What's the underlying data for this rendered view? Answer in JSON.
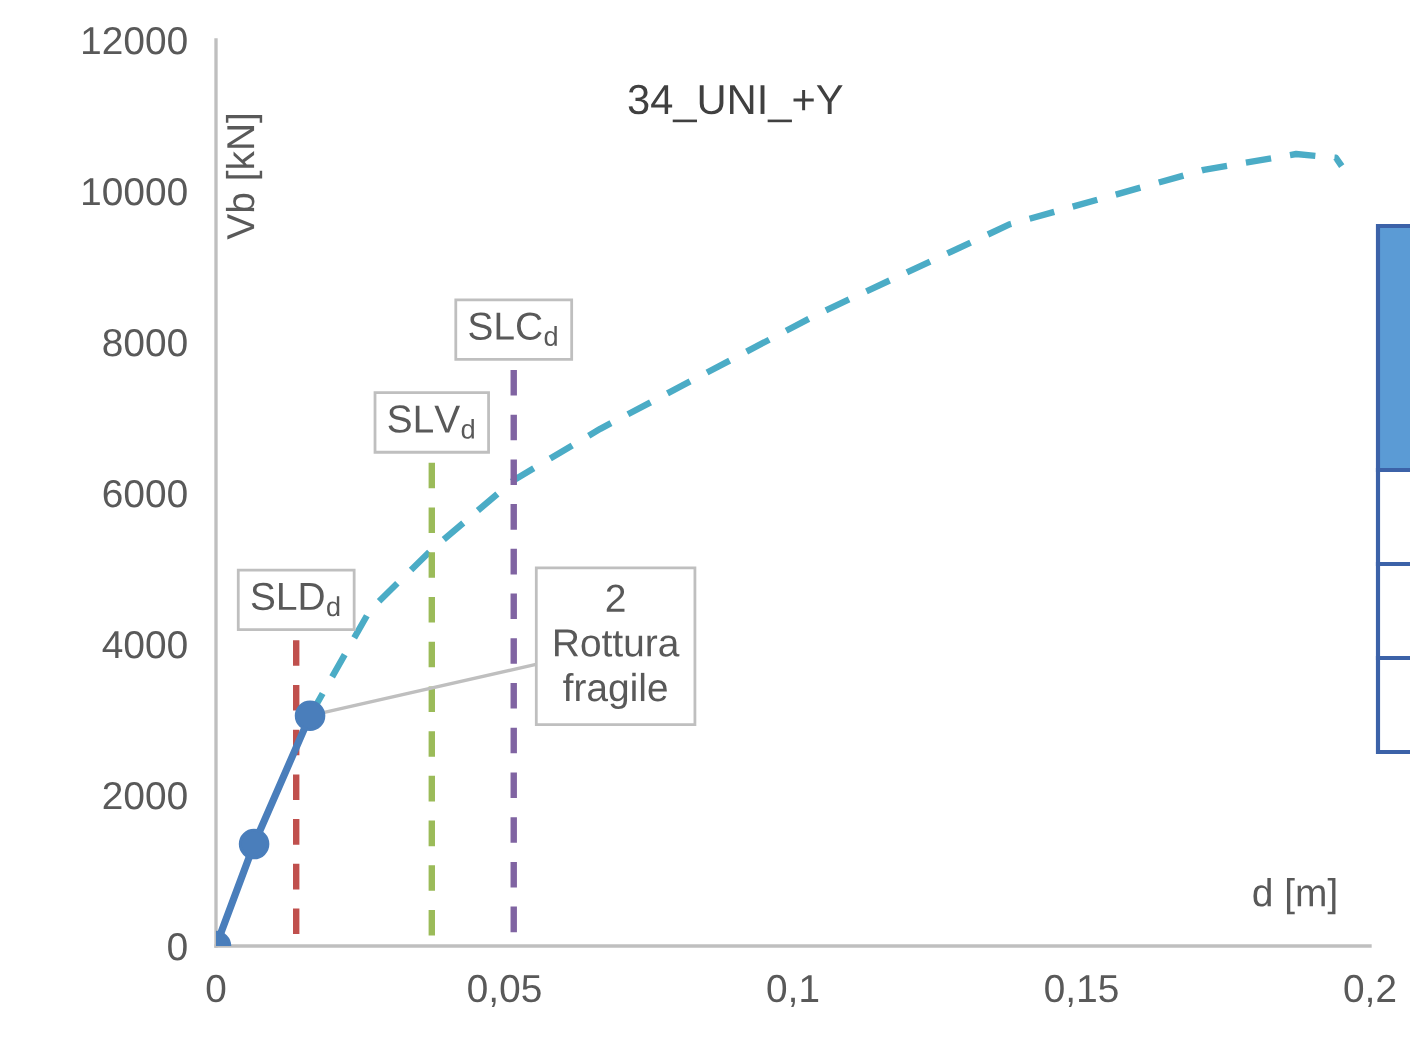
{
  "chart_data": {
    "type": "line",
    "title": "34_UNI_+Y",
    "xlabel": "d [m]",
    "ylabel": "Vb [kN]",
    "xlim": [
      0,
      0.2
    ],
    "xticks": [
      {
        "value": 0,
        "label": "0"
      },
      {
        "value": 0.05,
        "label": "0,05"
      },
      {
        "value": 0.1,
        "label": "0,1"
      },
      {
        "value": 0.15,
        "label": "0,15"
      },
      {
        "value": 0.2,
        "label": "0,2"
      }
    ],
    "ylim": [
      0,
      12000
    ],
    "yticks": [
      0,
      2000,
      4000,
      6000,
      8000,
      10000,
      12000
    ],
    "grid": false,
    "legend": false,
    "series": [
      {
        "color": "#4a7ebb",
        "marker": "circle",
        "line_style": "solid",
        "x": [
          0,
          0.0066,
          0.0163
        ],
        "values": [
          0,
          1350,
          3050
        ]
      },
      {
        "color": "#4bacc6",
        "marker": "none",
        "line_style": "dashed",
        "x": [
          0.0163,
          0.0267,
          0.0374,
          0.0516,
          0.0666,
          0.1043,
          0.1376,
          0.1712,
          0.1872,
          0.1941,
          0.1951
        ],
        "values": [
          3050,
          4450,
          5250,
          6170,
          6850,
          8370,
          9560,
          10280,
          10490,
          10440,
          10330
        ]
      },
      {
        "name": "SLD$_{d}$",
        "color": "#c0504d",
        "marker": "none",
        "line_style": "dashed",
        "x": [
          0.0139,
          0.0139
        ],
        "values": [
          0,
          4050
        ]
      },
      {
        "name": "SLV$_{d}$",
        "color": "#9bbb59",
        "marker": "none",
        "line_style": "dashed",
        "x": [
          0.0374,
          0.0374
        ],
        "values": [
          0,
          6400
        ]
      },
      {
        "name": "SLC$_{d}$",
        "color": "#8064a2",
        "marker": "none",
        "line_style": "dashed",
        "x": [
          0.0516,
          0.0516
        ],
        "values": [
          0,
          7630
        ]
      }
    ],
    "annotations": [
      {
        "text": "2\nRottura\nfragile",
        "x": 0.0163,
        "y": 3050
      }
    ]
  }
}
